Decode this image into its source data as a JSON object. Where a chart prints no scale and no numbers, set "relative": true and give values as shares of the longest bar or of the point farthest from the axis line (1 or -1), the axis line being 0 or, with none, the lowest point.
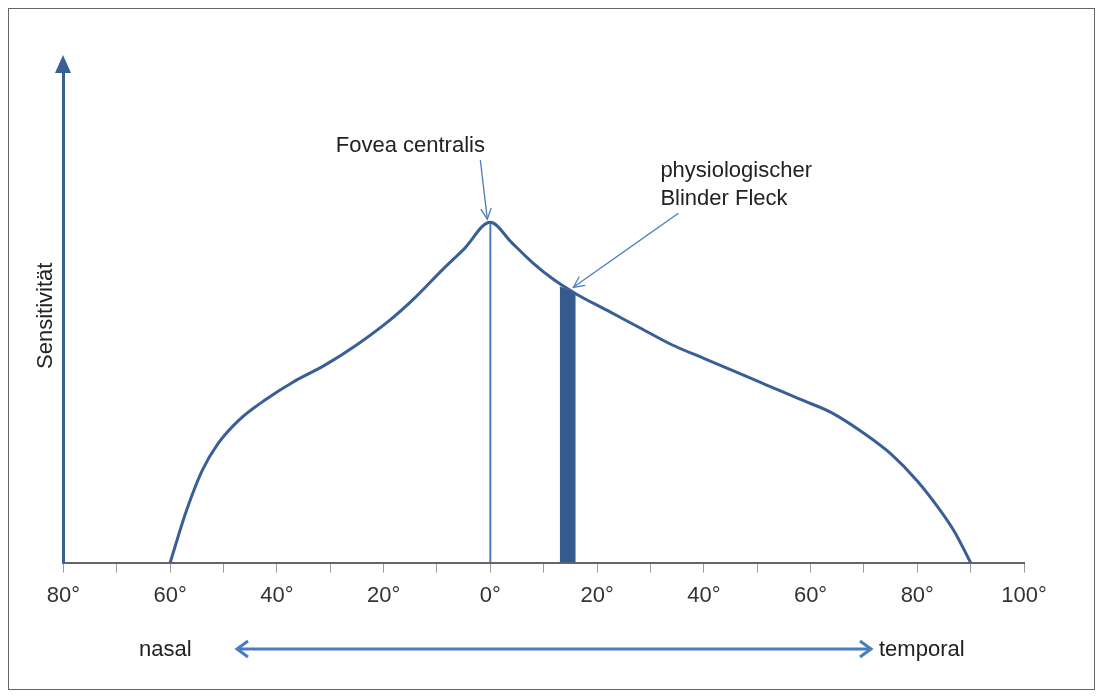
{
  "chart_data": {
    "type": "line",
    "ylabel": "Sensitivität",
    "relative": true,
    "xlim": [
      -80,
      100
    ],
    "xticks": [
      {
        "value": -80,
        "label": "80°"
      },
      {
        "value": -70,
        "label": null
      },
      {
        "value": -60,
        "label": "60°"
      },
      {
        "value": -50,
        "label": null
      },
      {
        "value": -40,
        "label": "40°"
      },
      {
        "value": -30,
        "label": null
      },
      {
        "value": -20,
        "label": "20°"
      },
      {
        "value": -10,
        "label": null
      },
      {
        "value": 0,
        "label": "0°"
      },
      {
        "value": 10,
        "label": null
      },
      {
        "value": 20,
        "label": "20°"
      },
      {
        "value": 30,
        "label": null
      },
      {
        "value": 40,
        "label": "40°"
      },
      {
        "value": 50,
        "label": null
      },
      {
        "value": 60,
        "label": "60°"
      },
      {
        "value": 70,
        "label": null
      },
      {
        "value": 80,
        "label": "80°"
      },
      {
        "value": 90,
        "label": null
      },
      {
        "value": 100,
        "label": "100°"
      }
    ],
    "series": [
      {
        "type": "line",
        "color": "#3a5f96",
        "x": [
          -60,
          -57,
          -54,
          -51,
          -47,
          -42,
          -37,
          -31,
          -25,
          -19,
          -14,
          -9,
          -5,
          0,
          4,
          8,
          12,
          16,
          22,
          28,
          34,
          40,
          46,
          52,
          58,
          64,
          70,
          75,
          80,
          84,
          87,
          90
        ],
        "values": [
          0,
          0.15,
          0.27,
          0.35,
          0.42,
          0.48,
          0.53,
          0.58,
          0.64,
          0.71,
          0.78,
          0.86,
          0.92,
          1,
          0.94,
          0.88,
          0.83,
          0.79,
          0.74,
          0.69,
          0.64,
          0.6,
          0.56,
          0.52,
          0.48,
          0.44,
          0.38,
          0.32,
          0.24,
          0.16,
          0.09,
          0
        ]
      },
      {
        "type": "line",
        "color": "#4a7cc0",
        "x": [
          0,
          0
        ],
        "values": [
          0,
          1
        ]
      },
      {
        "type": "area",
        "color": "#365a8c",
        "x": [
          13,
          16
        ],
        "values": [
          0.81,
          0.79
        ]
      }
    ],
    "annotations": [
      {
        "text": "Fovea centralis",
        "x": 0,
        "y": 1
      },
      {
        "text": "physiologischer Blinder Fleck",
        "x": 15,
        "y": 0.8
      },
      "nasal",
      "temporal"
    ],
    "legend": false,
    "grid": false
  }
}
